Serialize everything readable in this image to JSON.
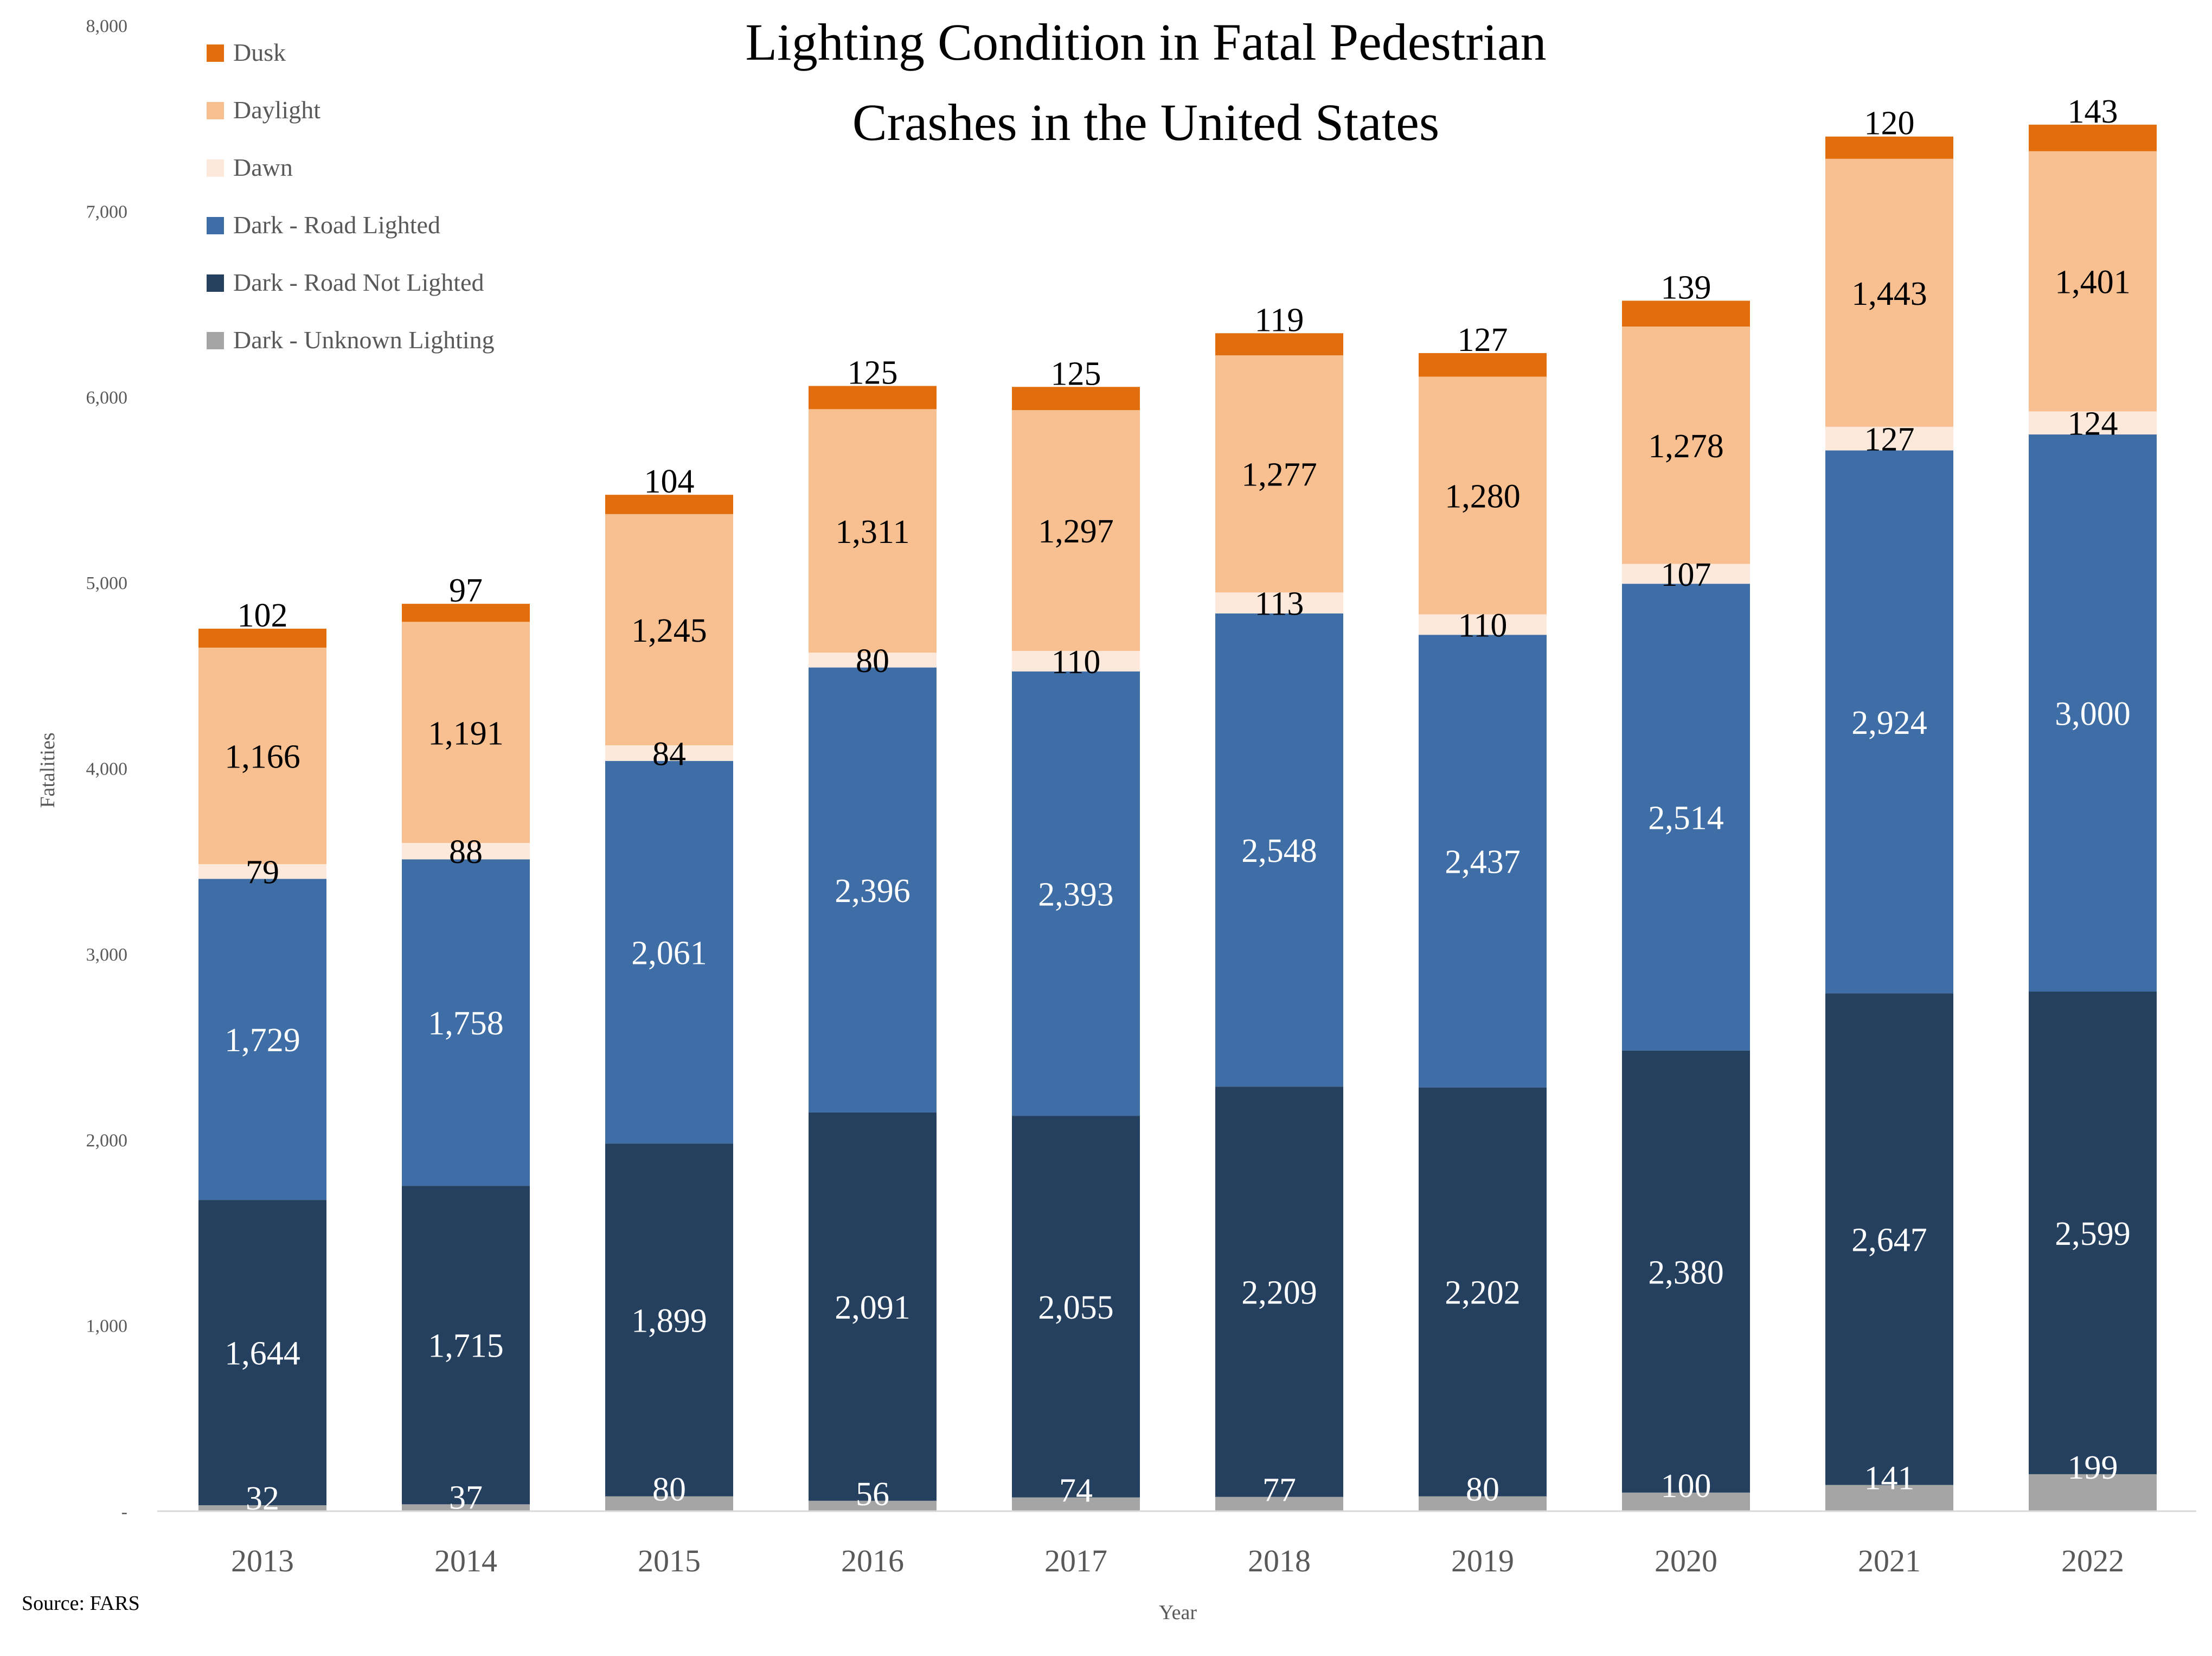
{
  "chart_data": {
    "type": "bar",
    "stacked": true,
    "title": "Lighting Condition in Fatal Pedestrian Crashes in the United States",
    "title_lines": [
      "Lighting Condition in Fatal Pedestrian",
      "Crashes in the United States"
    ],
    "xlabel": "Year",
    "ylabel": "Fatalities",
    "ylim": [
      0,
      8000
    ],
    "yticks": [
      0,
      1000,
      2000,
      3000,
      4000,
      5000,
      6000,
      7000,
      8000
    ],
    "ytick_labels": [
      "-",
      "1,000",
      "2,000",
      "3,000",
      "4,000",
      "5,000",
      "6,000",
      "7,000",
      "8,000"
    ],
    "grid": false,
    "legend_position": "top-left",
    "categories": [
      "2013",
      "2014",
      "2015",
      "2016",
      "2017",
      "2018",
      "2019",
      "2020",
      "2021",
      "2022"
    ],
    "series": [
      {
        "name": "Dark - Unknown Lighting",
        "color": "#A5A5A5",
        "label_color": "#FFFFFF",
        "values": [
          32,
          37,
          80,
          56,
          74,
          77,
          80,
          100,
          141,
          199
        ]
      },
      {
        "name": "Dark - Road Not Lighted",
        "color": "#253F5E",
        "label_color": "#FFFFFF",
        "values": [
          1644,
          1715,
          1899,
          2091,
          2055,
          2209,
          2202,
          2380,
          2647,
          2599
        ]
      },
      {
        "name": "Dark - Road Lighted",
        "color": "#3F6DA5",
        "label_color": "#FFFFFF",
        "values": [
          1729,
          1758,
          2061,
          2396,
          2393,
          2548,
          2437,
          2514,
          2924,
          3000
        ]
      },
      {
        "name": "Dawn",
        "color": "#FCE9DC",
        "label_color": "#000000",
        "values": [
          79,
          88,
          84,
          80,
          110,
          113,
          110,
          107,
          127,
          124
        ]
      },
      {
        "name": "Daylight",
        "color": "#F8C091",
        "label_color": "#000000",
        "values": [
          1166,
          1191,
          1245,
          1311,
          1297,
          1277,
          1280,
          1278,
          1443,
          1401
        ]
      },
      {
        "name": "Dusk",
        "color": "#E26D0C",
        "label_color": "#000000",
        "values": [
          102,
          97,
          104,
          125,
          125,
          119,
          127,
          139,
          120,
          143
        ]
      }
    ],
    "legend_order": [
      "Dusk",
      "Daylight",
      "Dawn",
      "Dark - Road Lighted",
      "Dark - Road Not Lighted",
      "Dark - Unknown Lighting"
    ],
    "source": "Source: FARS"
  }
}
